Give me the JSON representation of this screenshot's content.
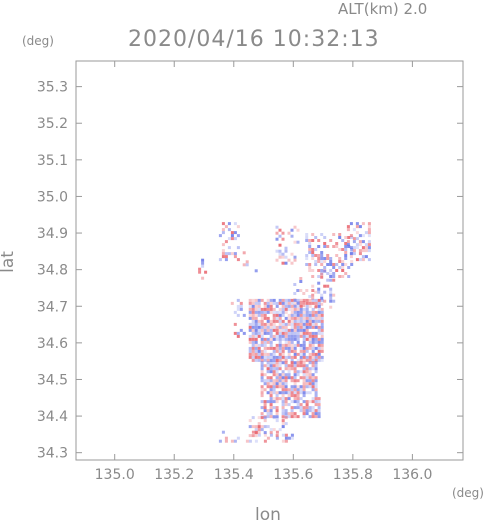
{
  "header": {
    "altitude_label": "ALT(km) 2.0",
    "datetime": "2020/04/16 10:32:13",
    "y_unit": "(deg)",
    "x_unit": "(deg)"
  },
  "chart_data": {
    "type": "heatmap",
    "title": "2020/04/16 10:32:13",
    "subtitle": "ALT(km) 2.0",
    "xlabel": "lon",
    "ylabel": "lat",
    "x_unit": "(deg)",
    "y_unit": "(deg)",
    "xlim": [
      134.87,
      136.17
    ],
    "ylim": [
      34.28,
      35.37
    ],
    "x_ticks": [
      135.0,
      135.2,
      135.4,
      135.6,
      135.8,
      136.0
    ],
    "x_tick_labels": [
      "135.0",
      "135.2",
      "135.4",
      "135.6",
      "135.8",
      "136.0"
    ],
    "y_ticks": [
      34.3,
      34.4,
      34.5,
      34.6,
      34.7,
      34.8,
      34.9,
      35.0,
      35.1,
      35.2,
      35.3
    ],
    "y_tick_labels": [
      "34.3",
      "34.4",
      "34.5",
      "34.6",
      "34.7",
      "34.8",
      "34.9",
      "35.0",
      "35.1",
      "35.2",
      "35.3"
    ],
    "grid": false,
    "colormap": {
      "positive": "#e8606a",
      "negative": "#6b78e8",
      "zero": "#ffffff"
    },
    "clusters": [
      {
        "lon": [
          135.28,
          135.31
        ],
        "lat": [
          34.77,
          34.83
        ],
        "density": 0.35
      },
      {
        "lon": [
          135.35,
          135.42
        ],
        "lat": [
          34.83,
          34.93
        ],
        "density": 0.35
      },
      {
        "lon": [
          135.43,
          135.48
        ],
        "lat": [
          34.8,
          34.85
        ],
        "density": 0.3
      },
      {
        "lon": [
          135.54,
          135.62
        ],
        "lat": [
          34.82,
          34.92
        ],
        "density": 0.3
      },
      {
        "lon": [
          135.6,
          135.67
        ],
        "lat": [
          34.7,
          34.78
        ],
        "density": 0.35
      },
      {
        "lon": [
          135.64,
          135.8
        ],
        "lat": [
          34.78,
          34.9
        ],
        "density": 0.45
      },
      {
        "lon": [
          135.66,
          135.74
        ],
        "lat": [
          34.7,
          34.8
        ],
        "density": 0.35
      },
      {
        "lon": [
          135.78,
          135.86
        ],
        "lat": [
          34.83,
          34.93
        ],
        "density": 0.5
      },
      {
        "lon": [
          135.39,
          135.44
        ],
        "lat": [
          34.62,
          34.72
        ],
        "density": 0.3
      },
      {
        "lon": [
          135.45,
          135.7
        ],
        "lat": [
          34.55,
          34.72
        ],
        "density": 0.9
      },
      {
        "lon": [
          135.49,
          135.68
        ],
        "lat": [
          34.46,
          34.55
        ],
        "density": 0.85
      },
      {
        "lon": [
          135.49,
          135.69
        ],
        "lat": [
          34.4,
          34.46
        ],
        "density": 0.7
      },
      {
        "lon": [
          135.45,
          135.58
        ],
        "lat": [
          34.35,
          34.4
        ],
        "density": 0.4
      },
      {
        "lon": [
          135.35,
          135.6
        ],
        "lat": [
          34.33,
          34.36
        ],
        "density": 0.25
      }
    ]
  }
}
